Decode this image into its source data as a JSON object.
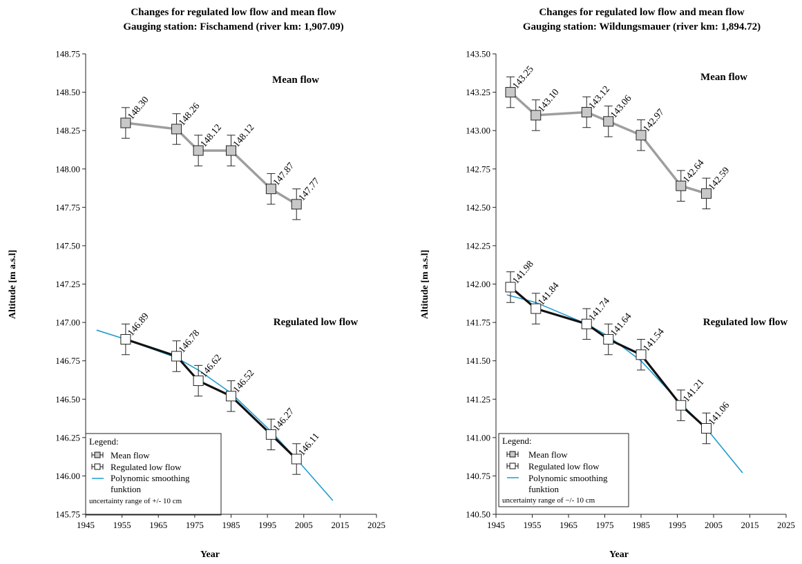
{
  "chart_data": [
    {
      "type": "line",
      "title": "Changes for regulated low flow and mean flow",
      "subtitle": "Gauging station: Fischamend (river km: 1,907.09)",
      "xlabel": "Year",
      "ylabel": "Altitude [m a.s.l]",
      "xlim": [
        1945,
        2025
      ],
      "ylim": [
        145.75,
        148.75
      ],
      "xticks": [
        1945,
        1955,
        1965,
        1975,
        1985,
        1995,
        2005,
        2015,
        2025
      ],
      "yticks": [
        145.75,
        146.0,
        146.25,
        146.5,
        146.75,
        147.0,
        147.25,
        147.5,
        147.75,
        148.0,
        148.25,
        148.5,
        148.75
      ],
      "xtick_labels": [
        "1945",
        "1955",
        "1965",
        "1975",
        "1985",
        "1995",
        "2005",
        "2015",
        "2025"
      ],
      "ytick_labels": [
        "145.75",
        "146.00",
        "146.25",
        "146.50",
        "146.75",
        "147.00",
        "147.25",
        "147.50",
        "147.75",
        "148.00",
        "148.25",
        "148.50",
        "148.75"
      ],
      "error": 0.1,
      "series": [
        {
          "name": "Mean flow",
          "x": [
            1956,
            1970,
            1976,
            1985,
            1996,
            2003
          ],
          "values": [
            148.3,
            148.26,
            148.12,
            148.12,
            147.87,
            147.77
          ],
          "labels": [
            "148.30",
            "148.26",
            "148.12",
            "148.12",
            "147.87",
            "147.77"
          ],
          "color": "#9e9e9e",
          "fill": "#c8c8c8"
        },
        {
          "name": "Regulated low flow",
          "x": [
            1956,
            1970,
            1976,
            1985,
            1996,
            2003
          ],
          "values": [
            146.89,
            146.78,
            146.62,
            146.52,
            146.27,
            146.11
          ],
          "labels": [
            "146.89",
            "146.78",
            "146.62",
            "146.52",
            "146.27",
            "146.11"
          ],
          "color": "#111111",
          "fill": "#ffffff"
        },
        {
          "name": "Polynomic smoothing funktion",
          "x": [
            1948,
            1956,
            1970,
            1976,
            1985,
            1996,
            2003,
            2013
          ],
          "values": [
            146.95,
            146.89,
            146.77,
            146.69,
            146.54,
            146.29,
            146.11,
            145.84
          ],
          "color": "#1f9bcf"
        }
      ],
      "annotations": [
        "Mean flow",
        "Regulated low flow"
      ],
      "legend": {
        "position": "bottom-left",
        "title": "Legend:",
        "items": [
          "Mean flow",
          "Regulated low flow",
          "Polynomic smoothing",
          "funktion"
        ],
        "note": "uncertainty range of +/- 10 cm"
      }
    },
    {
      "type": "line",
      "title": "Changes for regulated low flow and mean flow",
      "subtitle": "Gauging station: Wildungsmauer (river km: 1,894.72)",
      "xlabel": "Year",
      "ylabel": "Altitude [m a.s.l]",
      "xlim": [
        1945,
        2025
      ],
      "ylim": [
        140.5,
        143.5
      ],
      "xticks": [
        1945,
        1955,
        1965,
        1975,
        1985,
        1995,
        2005,
        2015,
        2025
      ],
      "yticks": [
        140.5,
        140.75,
        141.0,
        141.25,
        141.5,
        141.75,
        142.0,
        142.25,
        142.5,
        142.75,
        143.0,
        143.25,
        143.5
      ],
      "xtick_labels": [
        "1945",
        "1955",
        "1965",
        "1975",
        "1985",
        "1995",
        "2005",
        "2015",
        "2025"
      ],
      "ytick_labels": [
        "140.50",
        "140.75",
        "141.00",
        "141.25",
        "141.50",
        "141.75",
        "142.00",
        "142.25",
        "142.50",
        "142.75",
        "143.00",
        "143.25",
        "143.50"
      ],
      "error": 0.1,
      "series": [
        {
          "name": "Mean flow",
          "x": [
            1949,
            1956,
            1970,
            1976,
            1985,
            1996,
            2003
          ],
          "values": [
            143.25,
            143.1,
            143.12,
            143.06,
            142.97,
            142.64,
            142.59
          ],
          "labels": [
            "143.25",
            "143.10",
            "143.12",
            "143.06",
            "142.97",
            "142.64",
            "142.59"
          ],
          "color": "#9e9e9e",
          "fill": "#c8c8c8"
        },
        {
          "name": "Regulated low flow",
          "x": [
            1949,
            1956,
            1970,
            1976,
            1985,
            1996,
            2003
          ],
          "values": [
            141.98,
            141.84,
            141.74,
            141.64,
            141.54,
            141.21,
            141.06
          ],
          "labels": [
            "141.98",
            "141.84",
            "141.74",
            "141.64",
            "141.54",
            "141.21",
            "141.06"
          ],
          "color": "#111111",
          "fill": "#ffffff"
        },
        {
          "name": "Polynomic smoothing funktion",
          "x": [
            1948,
            1956,
            1970,
            1976,
            1985,
            1996,
            2003,
            2013
          ],
          "values": [
            141.93,
            141.88,
            141.74,
            141.66,
            141.5,
            141.22,
            141.06,
            140.77
          ],
          "color": "#1f9bcf"
        }
      ],
      "annotations": [
        "Mean flow",
        "Regulated low flow"
      ],
      "legend": {
        "position": "bottom-left",
        "title": "Legend:",
        "items": [
          "Mean flow",
          "Regulated low flow",
          "Polynomic smoothing",
          "funktion"
        ],
        "note": "uncertainty range of −/- 10 cm"
      }
    }
  ]
}
